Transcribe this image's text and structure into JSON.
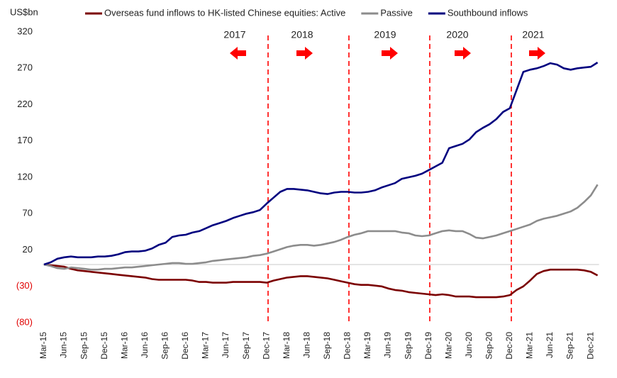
{
  "chart_data": {
    "type": "line",
    "y_axis_label": "US$bn",
    "categories": [
      "Mar-15",
      null,
      null,
      "Jun-15",
      null,
      null,
      "Sep-15",
      null,
      null,
      "Dec-15",
      null,
      null,
      "Mar-16",
      null,
      null,
      "Jun-16",
      null,
      null,
      "Sep-16",
      null,
      null,
      "Dec-16",
      null,
      null,
      "Mar-17",
      null,
      null,
      "Jun-17",
      null,
      null,
      "Sep-17",
      null,
      null,
      "Dec-17",
      null,
      null,
      "Mar-18",
      null,
      null,
      "Jun-18",
      null,
      null,
      "Sep-18",
      null,
      null,
      "Dec-18",
      null,
      null,
      "Mar-19",
      null,
      null,
      "Jun-19",
      null,
      null,
      "Sep-19",
      null,
      null,
      "Dec-19",
      null,
      null,
      "Mar-20",
      null,
      null,
      "Jun-20",
      null,
      null,
      "Sep-20",
      null,
      null,
      "Dec-20",
      null,
      null,
      "Mar-21",
      null,
      null,
      "Jun-21",
      null,
      null,
      "Sep-21",
      null,
      null,
      "Dec-21",
      null
    ],
    "series": [
      {
        "name": "Overseas fund inflows to HK-listed Chinese equities: Active",
        "color": "#7b0000",
        "values": [
          0,
          -1,
          -2,
          -3,
          -6,
          -8,
          -9,
          -10,
          -11,
          -12,
          -13,
          -14,
          -15,
          -16,
          -17,
          -18,
          -20,
          -21,
          -21,
          -21,
          -21,
          -21,
          -22,
          -24,
          -24,
          -25,
          -25,
          -25,
          -24,
          -24,
          -24,
          -24,
          -24,
          -25,
          -22,
          -20,
          -18,
          -17,
          -16,
          -16,
          -17,
          -18,
          -19,
          -21,
          -23,
          -25,
          -27,
          -28,
          -28,
          -29,
          -30,
          -33,
          -35,
          -36,
          -38,
          -39,
          -40,
          -41,
          -42,
          -41,
          -42,
          -44,
          -44,
          -44,
          -45,
          -45,
          -45,
          -45,
          -44,
          -42,
          -35,
          -30,
          -22,
          -13,
          -9,
          -7,
          -7,
          -7,
          -7,
          -7,
          -8,
          -10,
          -15
        ]
      },
      {
        "name": "Passive",
        "color": "#8c8c8c",
        "values": [
          0,
          -2,
          -5,
          -6,
          -4,
          -5,
          -6,
          -7,
          -7,
          -6,
          -6,
          -5,
          -4,
          -4,
          -3,
          -2,
          -1,
          0,
          1,
          2,
          2,
          1,
          1,
          2,
          3,
          5,
          6,
          7,
          8,
          9,
          10,
          12,
          13,
          15,
          18,
          21,
          24,
          26,
          27,
          27,
          26,
          27,
          29,
          31,
          34,
          38,
          41,
          43,
          46,
          46,
          46,
          46,
          46,
          44,
          43,
          40,
          39,
          40,
          43,
          46,
          47,
          46,
          46,
          42,
          37,
          36,
          38,
          40,
          43,
          46,
          49,
          52,
          55,
          60,
          63,
          65,
          67,
          70,
          73,
          78,
          86,
          95,
          110
        ]
      },
      {
        "name": "Southbound inflows",
        "color": "#00007f",
        "values": [
          0,
          3,
          8,
          10,
          11,
          10,
          10,
          10,
          11,
          11,
          12,
          14,
          17,
          18,
          18,
          19,
          22,
          27,
          30,
          38,
          40,
          41,
          44,
          46,
          50,
          54,
          57,
          60,
          64,
          67,
          70,
          72,
          75,
          84,
          92,
          100,
          104,
          104,
          103,
          102,
          100,
          98,
          97,
          99,
          100,
          100,
          99,
          99,
          100,
          102,
          106,
          109,
          112,
          118,
          120,
          122,
          125,
          130,
          135,
          140,
          160,
          163,
          166,
          172,
          182,
          188,
          193,
          200,
          210,
          215,
          240,
          265,
          268,
          270,
          273,
          277,
          275,
          270,
          268,
          270,
          271,
          272,
          278
        ]
      }
    ],
    "ylim": [
      -80,
      320
    ],
    "yticks": [
      320,
      270,
      220,
      170,
      120,
      70,
      20,
      {
        "value": -30,
        "label": "(30)"
      },
      {
        "value": -80,
        "label": "(80)"
      }
    ],
    "annotations": [
      "2017",
      "2018",
      "2019",
      "2020",
      "2021"
    ]
  }
}
